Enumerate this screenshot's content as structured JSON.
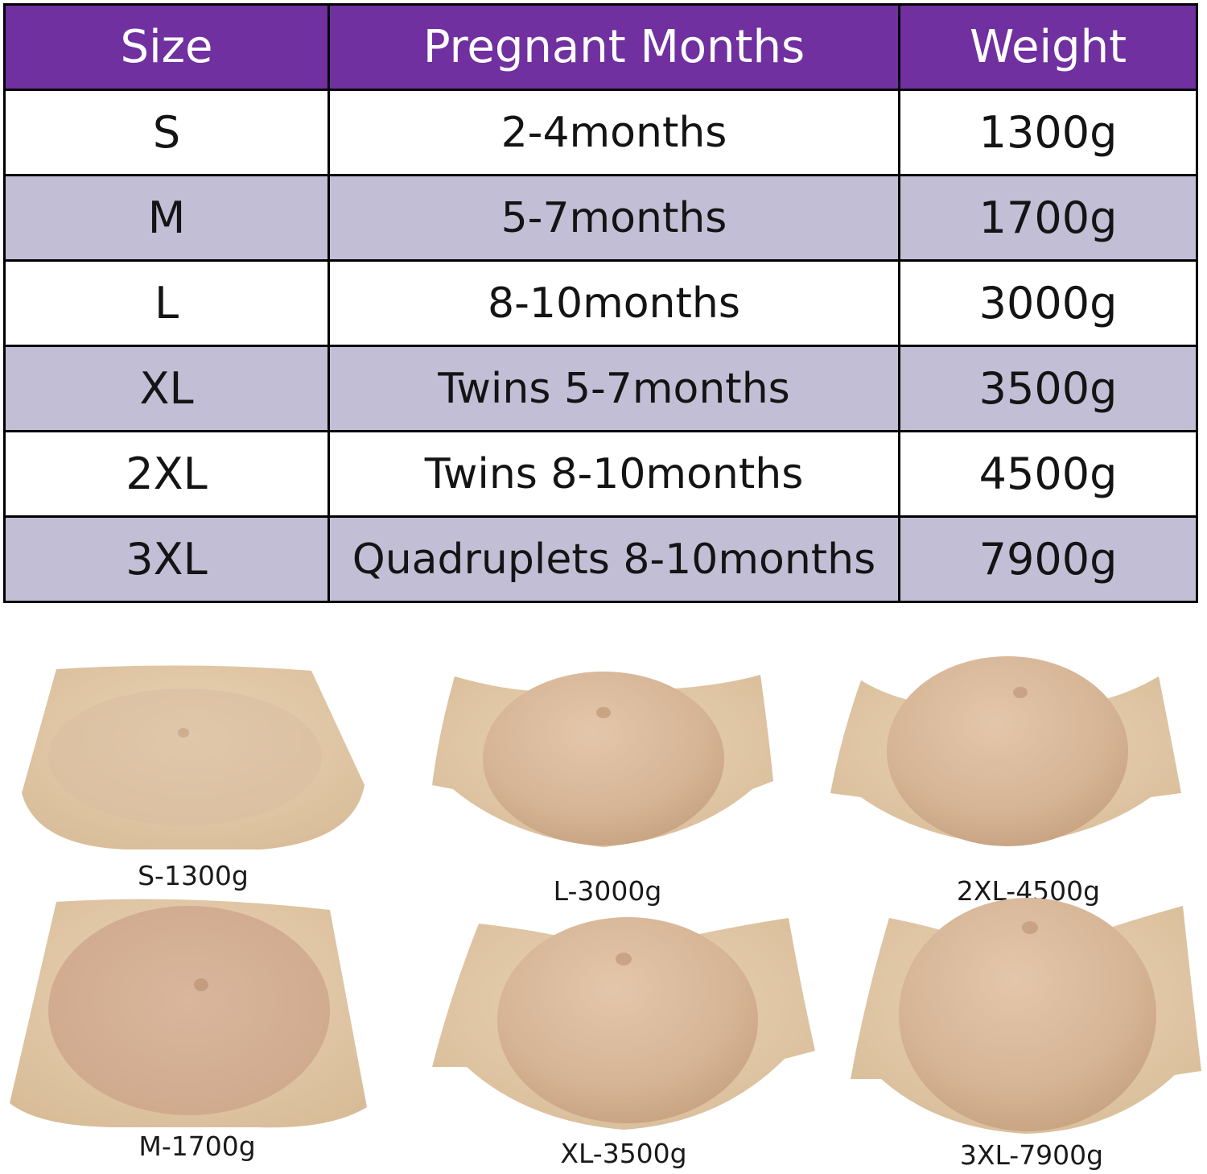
{
  "colors": {
    "header_bg": "#7030a0",
    "row_white": "#ffffff",
    "row_shaded": "#c2bed6",
    "skin_light": "#e2c9a8",
    "skin_belly": "#d9b79b"
  },
  "table": {
    "headers": [
      "Size",
      "Pregnant Months",
      "Weight"
    ],
    "rows": [
      {
        "size": "S",
        "months": "2-4months",
        "weight": "1300g"
      },
      {
        "size": "M",
        "months": "5-7months",
        "weight": "1700g"
      },
      {
        "size": "L",
        "months": "8-10months",
        "weight": "3000g"
      },
      {
        "size": "XL",
        "months": "Twins 5-7months",
        "weight": "3500g"
      },
      {
        "size": "2XL",
        "months": "Twins 8-10months",
        "weight": "4500g"
      },
      {
        "size": "3XL",
        "months": "Quadruplets 8-10months",
        "weight": "7900g"
      }
    ]
  },
  "photos": [
    {
      "label": "S-1300g",
      "style": "flat"
    },
    {
      "label": "L-3000g",
      "style": "dome"
    },
    {
      "label": "2XL-4500g",
      "style": "high-dome"
    },
    {
      "label": "M-1700g",
      "style": "soft"
    },
    {
      "label": "XL-3500g",
      "style": "dome"
    },
    {
      "label": "3XL-7900g",
      "style": "high-dome"
    }
  ]
}
